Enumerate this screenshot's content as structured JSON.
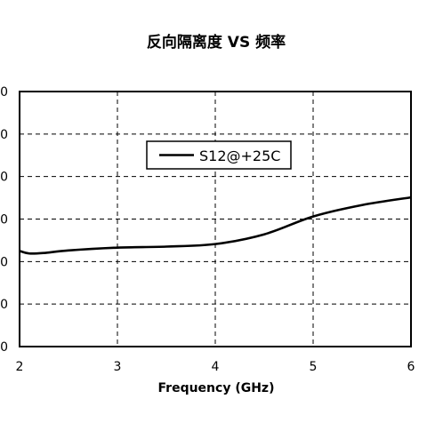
{
  "chart_data": {
    "type": "line",
    "title": "反向隔离度 VS 频率",
    "xlabel": "Frequency (GHz)",
    "ylabel": "",
    "xlim": [
      2,
      6
    ],
    "x_ticks": [
      "2",
      "3",
      "4",
      "5",
      "6"
    ],
    "y_ticks": [
      "0",
      "0",
      "0",
      "0",
      "0",
      "0",
      "0"
    ],
    "grid": true,
    "legend_position": "upper-middle",
    "series": [
      {
        "name": "S12@+25C",
        "color": "#000000",
        "points": [
          {
            "x": 2.0,
            "y": 0.375
          },
          {
            "x": 2.1,
            "y": 0.365
          },
          {
            "x": 2.25,
            "y": 0.367
          },
          {
            "x": 2.5,
            "y": 0.377
          },
          {
            "x": 3.0,
            "y": 0.388
          },
          {
            "x": 3.5,
            "y": 0.392
          },
          {
            "x": 4.0,
            "y": 0.402
          },
          {
            "x": 4.5,
            "y": 0.44
          },
          {
            "x": 5.0,
            "y": 0.51
          },
          {
            "x": 5.5,
            "y": 0.555
          },
          {
            "x": 6.0,
            "y": 0.585
          }
        ]
      }
    ]
  }
}
